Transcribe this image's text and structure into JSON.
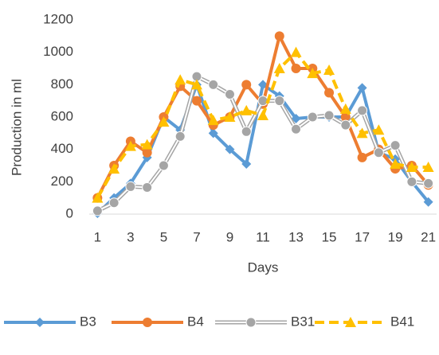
{
  "chart_data": {
    "type": "line",
    "y_label": "Production in ml",
    "x_label": "Days",
    "categories": [
      1,
      null,
      3,
      null,
      5,
      null,
      7,
      null,
      9,
      null,
      11,
      null,
      13,
      null,
      15,
      null,
      17,
      null,
      19,
      null,
      21
    ],
    "ylim": [
      0,
      1200
    ],
    "yticks": [
      0,
      200,
      400,
      600,
      800,
      1000,
      1200
    ],
    "grid": false,
    "legend": "bottom",
    "series": [
      {
        "name": "B3",
        "color": "#5b9bd5",
        "marker": "diamond",
        "line_style": "solid",
        "values": [
          5,
          100,
          190,
          350,
          600,
          520,
          800,
          500,
          400,
          310,
          800,
          730,
          590,
          600,
          600,
          600,
          780,
          380,
          340,
          200,
          75
        ]
      },
      {
        "name": "B4",
        "color": "#ed7d31",
        "marker": "circle",
        "line_style": "solid",
        "values": [
          100,
          300,
          450,
          380,
          600,
          790,
          700,
          550,
          600,
          800,
          680,
          1100,
          900,
          900,
          750,
          600,
          350,
          400,
          280,
          300,
          180
        ]
      },
      {
        "name": "B31",
        "color": "#a5a5a5",
        "marker": "circle",
        "line_style": "double",
        "values": [
          20,
          70,
          170,
          165,
          300,
          480,
          850,
          800,
          740,
          510,
          700,
          700,
          525,
          600,
          610,
          550,
          640,
          380,
          425,
          200,
          190
        ]
      },
      {
        "name": "B41",
        "color": "#ffc000",
        "marker": "triangle",
        "line_style": "dashed",
        "values": [
          100,
          280,
          420,
          430,
          570,
          830,
          800,
          580,
          600,
          640,
          610,
          900,
          1000,
          870,
          890,
          650,
          500,
          520,
          310,
          290,
          290
        ]
      }
    ]
  }
}
